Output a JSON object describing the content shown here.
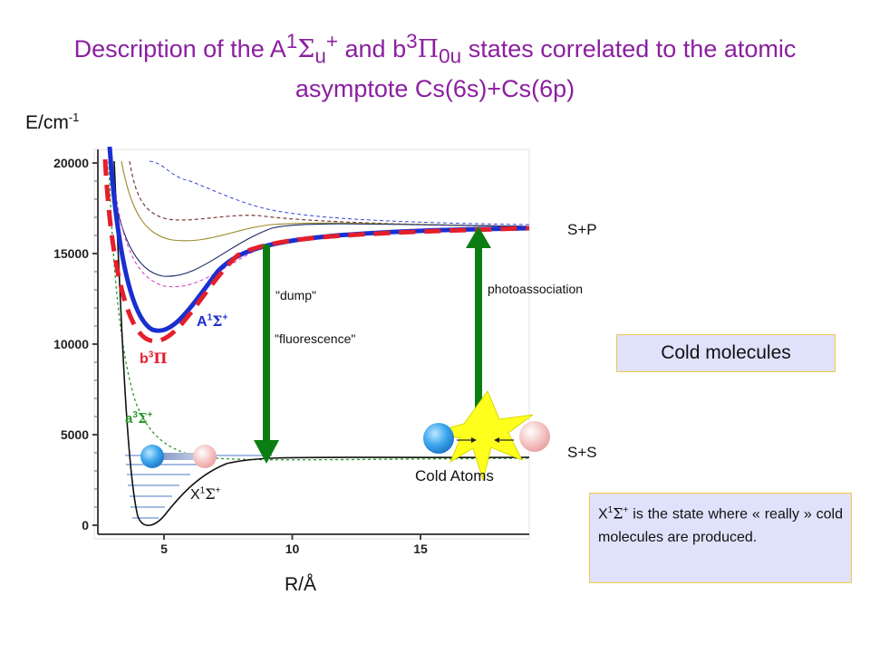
{
  "title": {
    "prefix": "Description of the A",
    "A_state": {
      "sup": "1",
      "sym": "Σ",
      "sub": "u",
      "sup2": "+"
    },
    "mid": " and b",
    "b_state": {
      "sup": "3",
      "sym": "Π",
      "sub": "0u"
    },
    "suffix": " states correlated to the atomic",
    "line2": "asymptote Cs(6s)+Cs(6p)"
  },
  "axes": {
    "ylabel": "E/cm",
    "ylabel_sup": "-1",
    "xlabel": "R/Å",
    "y_ticks": [
      "20000",
      "15000",
      "10000",
      "5000",
      "0"
    ],
    "x_ticks": [
      "5",
      "10",
      "15"
    ]
  },
  "labels": {
    "sp": "S+P",
    "ss": "S+S",
    "dump": "\"dump\"",
    "fluorescence": "\"fluorescence\"",
    "photoassociation": "photoassociation",
    "cold_atoms": "Cold Atoms"
  },
  "states": {
    "A": {
      "letter": "A",
      "sup": "1",
      "sym": "Σ",
      "sup2": "+"
    },
    "b": {
      "letter": "b",
      "sup": "3",
      "sym": "Π"
    },
    "a": {
      "letter": "a",
      "sup": "3",
      "sym": "Σ",
      "sup2": "+"
    },
    "X": {
      "letter": "X",
      "sup": "1",
      "sym": "Σ",
      "sup2": "+"
    }
  },
  "boxes": {
    "cold_molecules": "Cold molecules",
    "x_note_state": {
      "letter": "X",
      "sup": "1",
      "sym": "Σ",
      "sup2": "+"
    },
    "x_note_text": " is the state where « really » cold molecules are produced."
  },
  "colors": {
    "title": "#8b1fa0",
    "A_curve": "#1a2fd0",
    "b_curve": "#e41f2b",
    "a_curve": "#2a9a2a",
    "arrow": "#0c7d12",
    "box_fill": "#e0e2fb",
    "box_border": "#f3c84a"
  },
  "chart_data": {
    "type": "line",
    "x_range": [
      2.7,
      19.3
    ],
    "y_range": [
      -300,
      21000
    ],
    "xlabel": "R/Å",
    "ylabel": "E/cm-1",
    "series": [
      {
        "name": "X1Σ+",
        "style": "solid black",
        "x": [
          3.2,
          3.6,
          4.0,
          4.4,
          5.0,
          6.0,
          7.0,
          8.0,
          10.0,
          14.0,
          19.0
        ],
        "y": [
          21000,
          9000,
          1200,
          0,
          800,
          2500,
          3300,
          3600,
          3750,
          3800,
          3800
        ]
      },
      {
        "name": "a3Σ+",
        "style": "dashed green",
        "x": [
          3.5,
          4.0,
          5.0,
          6.0,
          7.0,
          8.0
        ],
        "y": [
          21000,
          9000,
          5500,
          4400,
          3900,
          3800
        ]
      },
      {
        "name": "A1Σ+",
        "style": "solid thick blue",
        "x": [
          3.7,
          4.0,
          4.5,
          5.0,
          5.5,
          6.0,
          7.0,
          8.0,
          10.0,
          14.0,
          19.0
        ],
        "y": [
          21000,
          14000,
          11000,
          10700,
          11500,
          12800,
          14500,
          15400,
          16200,
          16500,
          16500
        ]
      },
      {
        "name": "b3Π",
        "style": "dashed thick red",
        "x": [
          3.5,
          4.0,
          4.5,
          5.0,
          5.5,
          6.0,
          7.0,
          8.0,
          10.0,
          14.0,
          19.0
        ],
        "y": [
          20000,
          13500,
          10800,
          10500,
          11500,
          12800,
          14800,
          15800,
          16300,
          16400,
          16500
        ]
      }
    ]
  }
}
